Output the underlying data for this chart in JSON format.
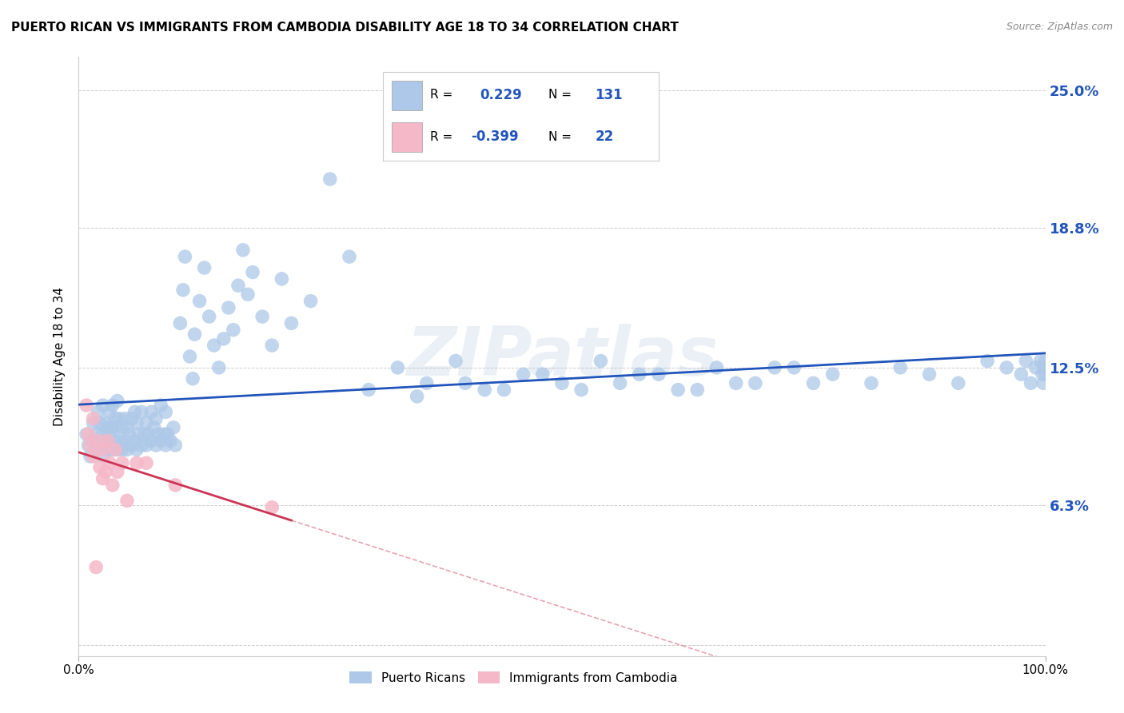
{
  "title": "PUERTO RICAN VS IMMIGRANTS FROM CAMBODIA DISABILITY AGE 18 TO 34 CORRELATION CHART",
  "source": "Source: ZipAtlas.com",
  "ylabel": "Disability Age 18 to 34",
  "xlim": [
    0.0,
    1.0
  ],
  "ylim": [
    -0.005,
    0.265
  ],
  "ytick_vals": [
    0.0,
    0.063,
    0.125,
    0.188,
    0.25
  ],
  "ytick_labels": [
    "",
    "6.3%",
    "12.5%",
    "18.8%",
    "25.0%"
  ],
  "xtick_vals": [
    0.0,
    1.0
  ],
  "xtick_labels": [
    "0.0%",
    "100.0%"
  ],
  "blue_R": 0.229,
  "blue_N": 131,
  "pink_R": -0.399,
  "pink_N": 22,
  "blue_dot_color": "#adc8e8",
  "pink_dot_color": "#f5b8c8",
  "blue_line_color": "#2255bb",
  "pink_line_color": "#cc3355",
  "legend_blue_label": "Puerto Ricans",
  "legend_pink_label": "Immigrants from Cambodia",
  "watermark": "ZIPatlas",
  "blue_x": [
    0.008,
    0.01,
    0.012,
    0.015,
    0.015,
    0.018,
    0.02,
    0.02,
    0.022,
    0.022,
    0.025,
    0.025,
    0.025,
    0.028,
    0.028,
    0.03,
    0.03,
    0.03,
    0.032,
    0.032,
    0.035,
    0.035,
    0.035,
    0.038,
    0.038,
    0.04,
    0.04,
    0.04,
    0.042,
    0.042,
    0.045,
    0.045,
    0.048,
    0.048,
    0.05,
    0.05,
    0.052,
    0.055,
    0.055,
    0.058,
    0.058,
    0.06,
    0.06,
    0.062,
    0.065,
    0.065,
    0.068,
    0.07,
    0.07,
    0.072,
    0.075,
    0.075,
    0.078,
    0.08,
    0.08,
    0.082,
    0.085,
    0.085,
    0.088,
    0.09,
    0.09,
    0.092,
    0.095,
    0.098,
    0.1,
    0.105,
    0.108,
    0.11,
    0.115,
    0.118,
    0.12,
    0.125,
    0.13,
    0.135,
    0.14,
    0.145,
    0.15,
    0.155,
    0.16,
    0.165,
    0.17,
    0.175,
    0.18,
    0.19,
    0.2,
    0.21,
    0.22,
    0.24,
    0.26,
    0.28,
    0.3,
    0.33,
    0.36,
    0.39,
    0.42,
    0.46,
    0.5,
    0.54,
    0.58,
    0.62,
    0.66,
    0.7,
    0.74,
    0.78,
    0.82,
    0.85,
    0.88,
    0.91,
    0.94,
    0.96,
    0.975,
    0.98,
    0.985,
    0.99,
    0.995,
    0.997,
    0.998,
    0.999,
    1.0,
    1.0,
    0.35,
    0.4,
    0.44,
    0.48,
    0.52,
    0.56,
    0.6,
    0.64,
    0.68,
    0.72,
    0.76
  ],
  "blue_y": [
    0.095,
    0.09,
    0.085,
    0.1,
    0.092,
    0.088,
    0.095,
    0.105,
    0.09,
    0.1,
    0.085,
    0.095,
    0.108,
    0.09,
    0.1,
    0.092,
    0.098,
    0.088,
    0.095,
    0.105,
    0.088,
    0.098,
    0.108,
    0.092,
    0.102,
    0.088,
    0.098,
    0.11,
    0.092,
    0.102,
    0.088,
    0.098,
    0.092,
    0.102,
    0.088,
    0.098,
    0.095,
    0.09,
    0.102,
    0.092,
    0.105,
    0.088,
    0.1,
    0.095,
    0.09,
    0.105,
    0.095,
    0.09,
    0.1,
    0.095,
    0.092,
    0.105,
    0.098,
    0.09,
    0.102,
    0.095,
    0.092,
    0.108,
    0.095,
    0.09,
    0.105,
    0.095,
    0.092,
    0.098,
    0.09,
    0.145,
    0.16,
    0.175,
    0.13,
    0.12,
    0.14,
    0.155,
    0.17,
    0.148,
    0.135,
    0.125,
    0.138,
    0.152,
    0.142,
    0.162,
    0.178,
    0.158,
    0.168,
    0.148,
    0.135,
    0.165,
    0.145,
    0.155,
    0.21,
    0.175,
    0.115,
    0.125,
    0.118,
    0.128,
    0.115,
    0.122,
    0.118,
    0.128,
    0.122,
    0.115,
    0.125,
    0.118,
    0.125,
    0.122,
    0.118,
    0.125,
    0.122,
    0.118,
    0.128,
    0.125,
    0.122,
    0.128,
    0.118,
    0.125,
    0.128,
    0.122,
    0.118,
    0.125,
    0.128,
    0.122,
    0.112,
    0.118,
    0.115,
    0.122,
    0.115,
    0.118,
    0.122,
    0.115,
    0.118,
    0.125,
    0.118
  ],
  "pink_x": [
    0.008,
    0.01,
    0.012,
    0.015,
    0.015,
    0.018,
    0.02,
    0.022,
    0.025,
    0.025,
    0.028,
    0.03,
    0.032,
    0.035,
    0.038,
    0.04,
    0.045,
    0.05,
    0.06,
    0.07,
    0.1,
    0.2
  ],
  "pink_y": [
    0.108,
    0.095,
    0.09,
    0.102,
    0.085,
    0.035,
    0.092,
    0.08,
    0.075,
    0.088,
    0.078,
    0.092,
    0.082,
    0.072,
    0.088,
    0.078,
    0.082,
    0.065,
    0.082,
    0.082,
    0.072,
    0.062
  ]
}
